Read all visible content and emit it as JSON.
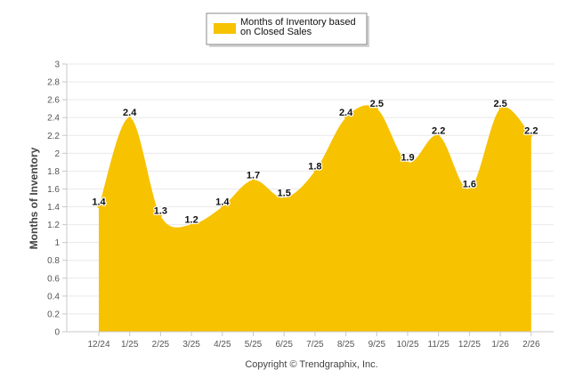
{
  "chart_data": {
    "type": "area",
    "title": "",
    "xlabel": "",
    "ylabel": "Months of Inventory",
    "ylim": [
      0,
      3
    ],
    "y_ticks": [
      "0",
      "0.2",
      "0.4",
      "0.6",
      "0.8",
      "1",
      "1.2",
      "1.4",
      "1.6",
      "1.8",
      "2",
      "2.2",
      "2.4",
      "2.6",
      "2.8",
      "3"
    ],
    "categories": [
      "12/24",
      "1/25",
      "2/25",
      "3/25",
      "4/25",
      "5/25",
      "6/25",
      "7/25",
      "8/25",
      "9/25",
      "10/25",
      "11/25",
      "12/25",
      "1/26",
      "2/26"
    ],
    "series": [
      {
        "name": "Months of Inventory based on Closed Sales",
        "legend_lines": [
          "Months of Inventory based",
          "on Closed Sales"
        ],
        "values": [
          1.4,
          2.4,
          1.3,
          1.2,
          1.4,
          1.7,
          1.5,
          1.8,
          2.4,
          2.5,
          1.9,
          2.2,
          1.6,
          2.5,
          2.2
        ],
        "labels": [
          "1.4",
          "2.4",
          "1.3",
          "1.2",
          "1.4",
          "1.7",
          "1.5",
          "1.8",
          "2.4",
          "2.5",
          "1.9",
          "2.2",
          "1.6",
          "2.5",
          "2.2"
        ],
        "color": "#f7c200"
      }
    ],
    "legend": "top-center",
    "grid": true,
    "footer": "Copyright © Trendgraphix, Inc."
  },
  "colors": {
    "grid": "#e9e9e9",
    "axis": "#c8c8c8",
    "text": "#555555",
    "label": "#111111"
  }
}
